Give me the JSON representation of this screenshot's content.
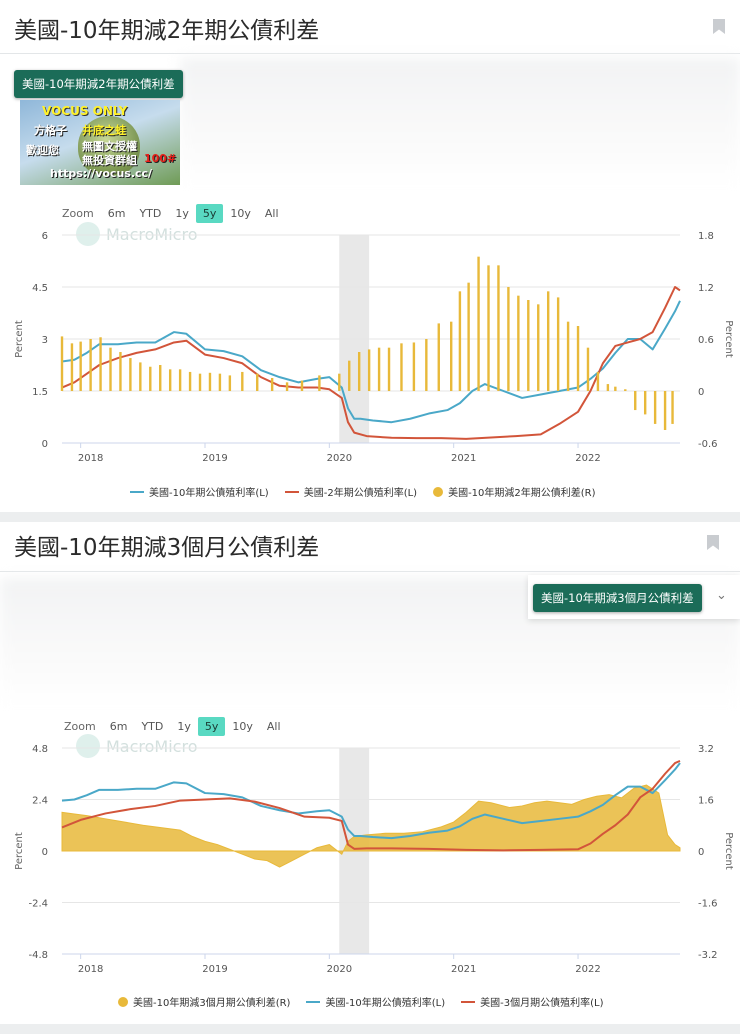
{
  "card1": {
    "title": "美國-10年期減2年期公債利差",
    "pill": "美國-10年期減2年期公債利差",
    "ad": {
      "line1": "VOCUS ONLY",
      "line2": "方格子",
      "line3": "井底之蛙",
      "line4": "歡迎您",
      "line5": "無圖文授權",
      "line6": "無投資群組",
      "line7": "https://vocus.cc/",
      "badge": "100#"
    },
    "range": {
      "zoom": "Zoom",
      "buttons": [
        "6m",
        "YTD",
        "1y",
        "5y",
        "10y",
        "All"
      ],
      "active": "5y"
    },
    "watermark": "MacroMicro",
    "legend": [
      "美國-10年期公債殖利率(L)",
      "美國-2年期公債殖利率(L)",
      "美國-10年期減2年期公債利差(R)"
    ]
  },
  "card2": {
    "title": "美國-10年期減3個月公債利差",
    "pill": "美國-10年期減3個月公債利差",
    "range": {
      "zoom": "Zoom",
      "buttons": [
        "6m",
        "YTD",
        "1y",
        "5y",
        "10y",
        "All"
      ],
      "active": "5y"
    },
    "watermark": "MacroMicro",
    "legend": [
      "美國-10年期減3個月期公債利差(R)",
      "美國-10年期公債殖利率(L)",
      "美國-3個月期公債殖利率(L)"
    ]
  },
  "colors": {
    "blue": "#4aa8c8",
    "red": "#d2553a",
    "gold": "#e8b93a",
    "band": "#e8e8e8",
    "accent": "#1b6c58",
    "active": "#59d9c2"
  },
  "chart_data": [
    {
      "type": "line",
      "title": "美國-10年期減2年期公債利差",
      "ylabel": "Percent",
      "y2label": "Percent",
      "ylim": [
        0,
        6
      ],
      "y2lim": [
        -0.6,
        1.8
      ],
      "yticks": [
        "0",
        "1.5",
        "3",
        "4.5",
        "6"
      ],
      "y2ticks": [
        "-0.6",
        "0",
        "0.6",
        "1.2",
        "1.8"
      ],
      "xticks": [
        "2018",
        "2019",
        "2020",
        "2021",
        "2022"
      ],
      "x_range": [
        2017.85,
        2022.82
      ],
      "shaded": [
        2020.08,
        2020.32
      ],
      "series": [
        {
          "name": "美國-10年期公債殖利率(L)",
          "axis": "left",
          "kind": "line",
          "x": [
            2017.85,
            2017.95,
            2018.05,
            2018.15,
            2018.3,
            2018.45,
            2018.6,
            2018.75,
            2018.85,
            2019.0,
            2019.15,
            2019.3,
            2019.45,
            2019.6,
            2019.75,
            2019.9,
            2020.0,
            2020.1,
            2020.15,
            2020.2,
            2020.25,
            2020.35,
            2020.5,
            2020.65,
            2020.8,
            2020.95,
            2021.05,
            2021.15,
            2021.25,
            2021.4,
            2021.55,
            2021.7,
            2021.85,
            2022.0,
            2022.1,
            2022.2,
            2022.3,
            2022.4,
            2022.5,
            2022.6,
            2022.7,
            2022.78,
            2022.82
          ],
          "y": [
            2.35,
            2.4,
            2.6,
            2.85,
            2.85,
            2.9,
            2.9,
            3.2,
            3.15,
            2.7,
            2.65,
            2.5,
            2.1,
            1.9,
            1.75,
            1.85,
            1.9,
            1.6,
            1.0,
            0.7,
            0.7,
            0.65,
            0.6,
            0.7,
            0.85,
            0.95,
            1.15,
            1.5,
            1.7,
            1.5,
            1.3,
            1.4,
            1.5,
            1.6,
            1.85,
            2.15,
            2.6,
            3.0,
            3.0,
            2.7,
            3.3,
            3.8,
            4.1
          ]
        },
        {
          "name": "美國-2年期公債殖利率(L)",
          "axis": "left",
          "kind": "line",
          "x": [
            2017.85,
            2017.95,
            2018.05,
            2018.15,
            2018.3,
            2018.45,
            2018.6,
            2018.75,
            2018.85,
            2019.0,
            2019.15,
            2019.3,
            2019.45,
            2019.6,
            2019.75,
            2019.9,
            2020.0,
            2020.1,
            2020.15,
            2020.2,
            2020.3,
            2020.5,
            2020.7,
            2020.9,
            2021.1,
            2021.3,
            2021.5,
            2021.7,
            2021.85,
            2022.0,
            2022.1,
            2022.2,
            2022.3,
            2022.4,
            2022.5,
            2022.6,
            2022.7,
            2022.78,
            2022.82
          ],
          "y": [
            1.6,
            1.75,
            2.0,
            2.25,
            2.45,
            2.6,
            2.7,
            2.9,
            2.95,
            2.55,
            2.45,
            2.3,
            1.9,
            1.65,
            1.6,
            1.6,
            1.55,
            1.3,
            0.6,
            0.3,
            0.2,
            0.15,
            0.14,
            0.14,
            0.12,
            0.16,
            0.2,
            0.25,
            0.55,
            0.9,
            1.5,
            2.3,
            2.8,
            2.9,
            3.0,
            3.2,
            3.9,
            4.5,
            4.4
          ]
        },
        {
          "name": "美國-10年期減2年期公債利差(R)",
          "axis": "right",
          "kind": "bar",
          "x": [
            2017.85,
            2017.93,
            2018.0,
            2018.08,
            2018.16,
            2018.24,
            2018.32,
            2018.4,
            2018.48,
            2018.56,
            2018.64,
            2018.72,
            2018.8,
            2018.88,
            2018.96,
            2019.04,
            2019.12,
            2019.2,
            2019.3,
            2019.42,
            2019.54,
            2019.66,
            2019.78,
            2019.92,
            2020.08,
            2020.16,
            2020.24,
            2020.32,
            2020.4,
            2020.48,
            2020.58,
            2020.68,
            2020.78,
            2020.88,
            2020.98,
            2021.05,
            2021.12,
            2021.2,
            2021.28,
            2021.36,
            2021.44,
            2021.52,
            2021.6,
            2021.68,
            2021.76,
            2021.84,
            2021.92,
            2022.0,
            2022.08,
            2022.16,
            2022.24,
            2022.3,
            2022.38,
            2022.46,
            2022.54,
            2022.62,
            2022.7,
            2022.76
          ],
          "y": [
            0.63,
            0.55,
            0.57,
            0.6,
            0.62,
            0.5,
            0.45,
            0.38,
            0.33,
            0.28,
            0.3,
            0.25,
            0.25,
            0.22,
            0.2,
            0.21,
            0.2,
            0.18,
            0.22,
            0.2,
            0.15,
            0.1,
            0.12,
            0.18,
            0.2,
            0.35,
            0.45,
            0.48,
            0.5,
            0.5,
            0.55,
            0.56,
            0.6,
            0.78,
            0.8,
            1.15,
            1.25,
            1.55,
            1.45,
            1.45,
            1.2,
            1.1,
            1.05,
            1.0,
            1.15,
            1.08,
            0.8,
            0.75,
            0.5,
            0.22,
            0.08,
            0.05,
            0.02,
            -0.22,
            -0.27,
            -0.38,
            -0.45,
            -0.38
          ]
        }
      ]
    },
    {
      "type": "line",
      "title": "美國-10年期減3個月公債利差",
      "ylabel": "Percent",
      "y2label": "Percent",
      "ylim": [
        -4.8,
        4.8
      ],
      "y2lim": [
        -3.2,
        3.2
      ],
      "yticks": [
        "-4.8",
        "-2.4",
        "0",
        "2.4",
        "4.8"
      ],
      "y2ticks": [
        "-3.2",
        "-1.6",
        "0",
        "1.6",
        "3.2"
      ],
      "xticks": [
        "2018",
        "2019",
        "2020",
        "2021",
        "2022"
      ],
      "x_range": [
        2017.85,
        2022.82
      ],
      "shaded": [
        2020.08,
        2020.32
      ],
      "series": [
        {
          "name": "美國-10年期減3個月期公債利差(R)",
          "axis": "right",
          "kind": "area",
          "x": [
            2017.85,
            2017.95,
            2018.05,
            2018.2,
            2018.35,
            2018.5,
            2018.6,
            2018.7,
            2018.8,
            2018.9,
            2019.0,
            2019.1,
            2019.2,
            2019.3,
            2019.4,
            2019.5,
            2019.6,
            2019.7,
            2019.8,
            2019.9,
            2020.0,
            2020.1,
            2020.15,
            2020.2,
            2020.3,
            2020.45,
            2020.6,
            2020.75,
            2020.9,
            2021.0,
            2021.1,
            2021.2,
            2021.3,
            2021.45,
            2021.55,
            2021.65,
            2021.75,
            2021.85,
            2021.95,
            2022.05,
            2022.15,
            2022.25,
            2022.35,
            2022.45,
            2022.55,
            2022.65,
            2022.72,
            2022.78,
            2022.82
          ],
          "y": [
            1.2,
            1.15,
            1.1,
            1.0,
            0.9,
            0.8,
            0.75,
            0.7,
            0.65,
            0.45,
            0.3,
            0.2,
            0.05,
            -0.1,
            -0.25,
            -0.3,
            -0.5,
            -0.3,
            -0.1,
            0.1,
            0.2,
            -0.1,
            0.3,
            0.45,
            0.5,
            0.55,
            0.55,
            0.6,
            0.75,
            0.9,
            1.2,
            1.55,
            1.5,
            1.35,
            1.4,
            1.5,
            1.55,
            1.5,
            1.45,
            1.6,
            1.7,
            1.75,
            1.65,
            1.95,
            2.05,
            1.8,
            0.5,
            0.2,
            0.1
          ]
        },
        {
          "name": "美國-10年期公債殖利率(L)",
          "axis": "left",
          "kind": "line",
          "x": [
            2017.85,
            2017.95,
            2018.05,
            2018.15,
            2018.3,
            2018.45,
            2018.6,
            2018.75,
            2018.85,
            2019.0,
            2019.15,
            2019.3,
            2019.45,
            2019.6,
            2019.75,
            2019.9,
            2020.0,
            2020.1,
            2020.15,
            2020.2,
            2020.25,
            2020.35,
            2020.5,
            2020.65,
            2020.8,
            2020.95,
            2021.05,
            2021.15,
            2021.25,
            2021.4,
            2021.55,
            2021.7,
            2021.85,
            2022.0,
            2022.1,
            2022.2,
            2022.3,
            2022.4,
            2022.5,
            2022.6,
            2022.7,
            2022.78,
            2022.82
          ],
          "y": [
            2.35,
            2.4,
            2.6,
            2.85,
            2.85,
            2.9,
            2.9,
            3.2,
            3.15,
            2.7,
            2.65,
            2.5,
            2.1,
            1.9,
            1.75,
            1.85,
            1.9,
            1.6,
            1.0,
            0.7,
            0.7,
            0.65,
            0.6,
            0.7,
            0.85,
            0.95,
            1.15,
            1.5,
            1.7,
            1.5,
            1.3,
            1.4,
            1.5,
            1.6,
            1.85,
            2.15,
            2.6,
            3.0,
            3.0,
            2.7,
            3.3,
            3.8,
            4.1
          ]
        },
        {
          "name": "美國-3個月期公債殖利率(L)",
          "axis": "left",
          "kind": "line",
          "x": [
            2017.85,
            2018.0,
            2018.2,
            2018.4,
            2018.6,
            2018.8,
            2019.0,
            2019.2,
            2019.4,
            2019.6,
            2019.8,
            2020.0,
            2020.1,
            2020.15,
            2020.2,
            2020.3,
            2020.5,
            2020.8,
            2021.1,
            2021.4,
            2021.7,
            2022.0,
            2022.1,
            2022.2,
            2022.3,
            2022.4,
            2022.5,
            2022.6,
            2022.7,
            2022.78,
            2022.82
          ],
          "y": [
            1.1,
            1.45,
            1.75,
            1.95,
            2.1,
            2.35,
            2.4,
            2.45,
            2.3,
            2.0,
            1.6,
            1.55,
            1.4,
            0.3,
            0.1,
            0.12,
            0.12,
            0.1,
            0.05,
            0.03,
            0.05,
            0.08,
            0.35,
            0.8,
            1.2,
            1.7,
            2.5,
            2.9,
            3.6,
            4.1,
            4.2
          ]
        }
      ]
    }
  ]
}
